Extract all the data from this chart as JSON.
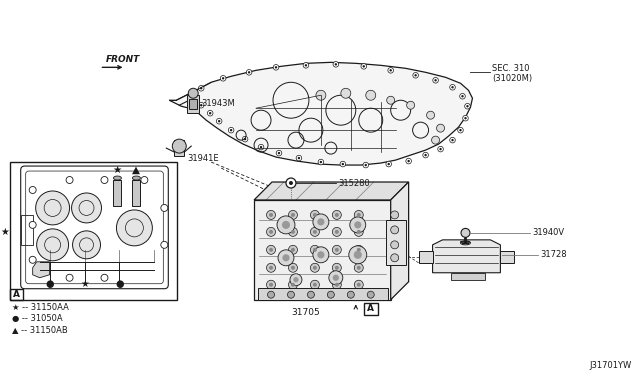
{
  "bg_color": "#ffffff",
  "diagram_id": "J31701YW",
  "labels": {
    "front_arrow": "FRONT",
    "sec310_line1": "SEC. 310",
    "sec310_line2": "(31020M)",
    "part_31943M": "31943M",
    "part_31941E": "31941E",
    "part_315280": "315280",
    "part_31705": "31705",
    "part_31940V": "31940V",
    "part_31728": "31728",
    "legend_star": "★ -- 31150AA",
    "legend_dot": "● -- 31050A",
    "legend_tri": "▲ -- 31150AB",
    "box_A": "A"
  },
  "lc": "#1a1a1a",
  "tc": "#1a1a1a",
  "gc": "#777777",
  "fs": 6.0
}
